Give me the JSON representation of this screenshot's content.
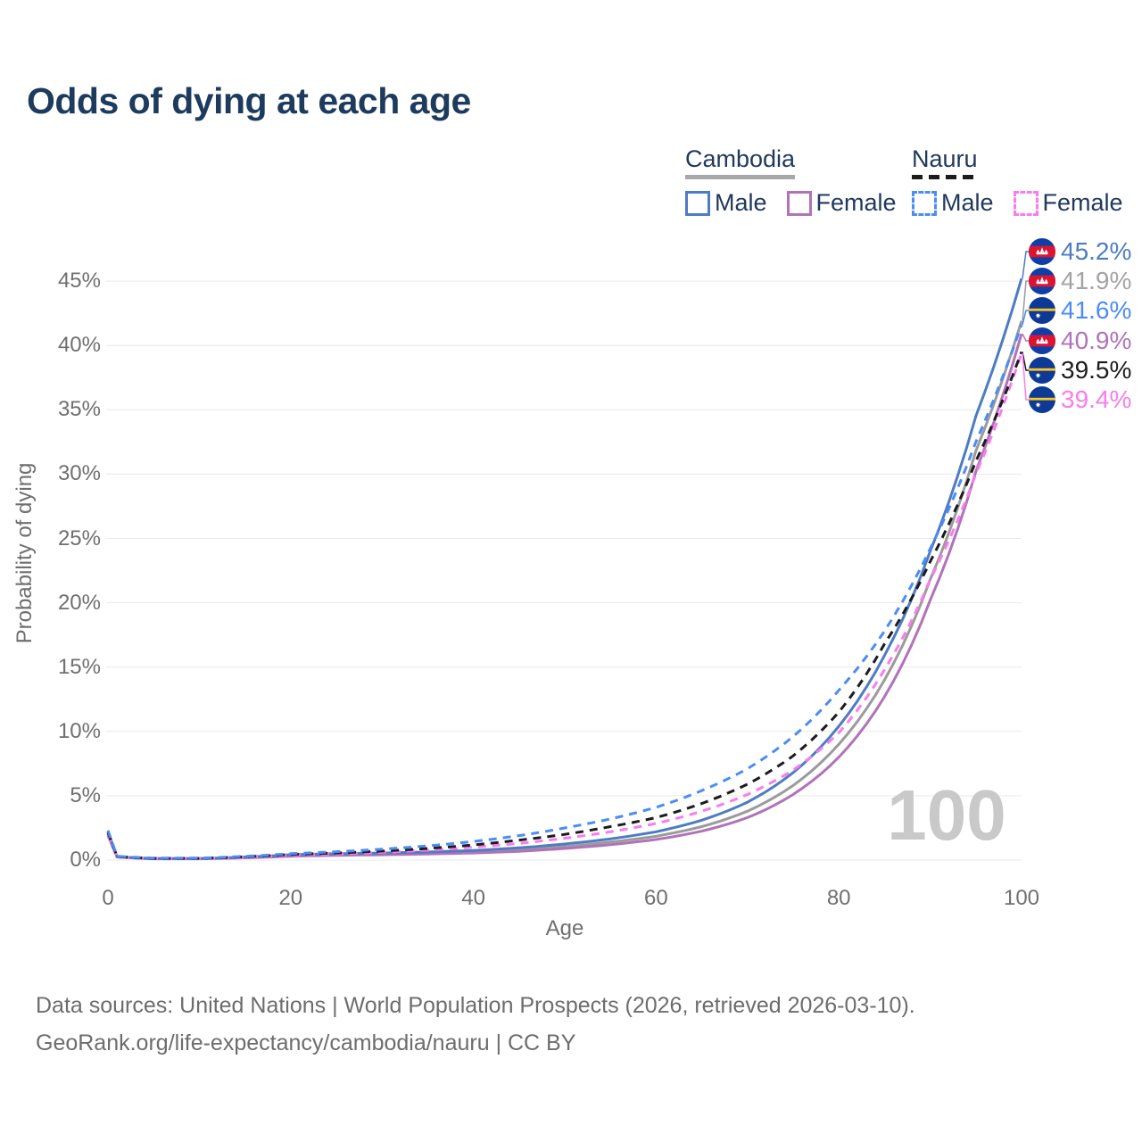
{
  "title": "Odds of dying at each age",
  "legend": {
    "groups": [
      {
        "country": "Cambodia",
        "line_style": "solid",
        "underline_color": "#a8a8a8",
        "items": [
          {
            "label": "Male",
            "color": "#4d7cc4",
            "dashed": false
          },
          {
            "label": "Female",
            "color": "#b172ba",
            "dashed": false
          }
        ]
      },
      {
        "country": "Nauru",
        "line_style": "dashed",
        "underline_color": "#1c1c1c",
        "items": [
          {
            "label": "Male",
            "color": "#4b8cf5",
            "dashed": true
          },
          {
            "label": "Female",
            "color": "#f97cee",
            "dashed": true
          }
        ]
      }
    ]
  },
  "watermark": "100",
  "footer": {
    "line1": "Data sources: United Nations | World Population Prospects (2026, retrieved 2026-03-10).",
    "line2": "GeoRank.org/life-expectancy/cambodia/nauru | CC BY"
  },
  "chart_data": {
    "type": "line",
    "title": "Odds of dying at each age",
    "xlabel": "Age",
    "ylabel": "Probability of dying",
    "xlim": [
      0,
      100
    ],
    "ylim_percent": [
      0,
      47
    ],
    "grid": true,
    "x_ticks": [
      0,
      20,
      40,
      60,
      80,
      100
    ],
    "y_ticks_percent": [
      0,
      5,
      10,
      15,
      20,
      25,
      30,
      35,
      40,
      45
    ],
    "y_tick_labels": [
      "0%",
      "5%",
      "10%",
      "15%",
      "20%",
      "25%",
      "30%",
      "35%",
      "40%",
      "45%"
    ],
    "ages": [
      0,
      1,
      5,
      10,
      15,
      20,
      25,
      30,
      35,
      40,
      45,
      50,
      55,
      60,
      65,
      70,
      75,
      80,
      85,
      90,
      95,
      100
    ],
    "series": [
      {
        "name": "Cambodia Male",
        "country": "Cambodia",
        "sex": "Male",
        "color": "#4d7cc4",
        "dashed": false,
        "flag": "cambodia",
        "end_label": "45.2%",
        "label_color": "#4d7cc4",
        "values_percent": [
          2.2,
          0.27,
          0.12,
          0.12,
          0.24,
          0.42,
          0.5,
          0.55,
          0.63,
          0.75,
          0.95,
          1.25,
          1.65,
          2.2,
          3.1,
          4.5,
          6.8,
          10.4,
          15.9,
          24.0,
          34.5,
          45.2
        ]
      },
      {
        "name": "Cambodia Both sexes",
        "country": "Cambodia",
        "sex": "Both",
        "color": "#9b9b9b",
        "dashed": false,
        "flag": "cambodia",
        "end_label": "41.9%",
        "label_color": "#a3a3a3",
        "values_percent": [
          2.05,
          0.25,
          0.11,
          0.11,
          0.2,
          0.36,
          0.43,
          0.47,
          0.54,
          0.64,
          0.8,
          1.05,
          1.4,
          1.85,
          2.6,
          3.8,
          5.8,
          9.0,
          14.0,
          21.8,
          31.8,
          41.9
        ]
      },
      {
        "name": "Nauru Male",
        "country": "Nauru",
        "sex": "Male",
        "color": "#4b8cf5",
        "dashed": true,
        "flag": "nauru",
        "end_label": "41.6%",
        "label_color": "#4b8cf5",
        "values_percent": [
          2.3,
          0.3,
          0.15,
          0.15,
          0.3,
          0.5,
          0.65,
          0.85,
          1.1,
          1.45,
          1.9,
          2.5,
          3.2,
          4.1,
          5.4,
          7.1,
          9.6,
          13.2,
          17.8,
          24.2,
          32.5,
          41.6
        ]
      },
      {
        "name": "Cambodia Female",
        "country": "Cambodia",
        "sex": "Female",
        "color": "#b172ba",
        "dashed": false,
        "flag": "cambodia",
        "end_label": "40.9%",
        "label_color": "#b172ba",
        "values_percent": [
          1.9,
          0.23,
          0.1,
          0.1,
          0.17,
          0.3,
          0.37,
          0.41,
          0.47,
          0.55,
          0.68,
          0.9,
          1.2,
          1.6,
          2.25,
          3.3,
          5.1,
          8.0,
          12.7,
          20.2,
          30.2,
          40.9
        ]
      },
      {
        "name": "Nauru Both sexes",
        "country": "Nauru",
        "sex": "Both",
        "color": "#1c1c1c",
        "dashed": true,
        "flag": "nauru",
        "end_label": "39.5%",
        "label_color": "#1d1d1d",
        "values_percent": [
          2.15,
          0.28,
          0.13,
          0.13,
          0.26,
          0.44,
          0.55,
          0.7,
          0.9,
          1.18,
          1.55,
          2.0,
          2.6,
          3.3,
          4.4,
          5.9,
          8.1,
          11.5,
          16.8,
          23.2,
          31.0,
          39.5
        ]
      },
      {
        "name": "Nauru Female",
        "country": "Nauru",
        "sex": "Female",
        "color": "#f97cee",
        "dashed": true,
        "flag": "nauru",
        "end_label": "39.4%",
        "label_color": "#f97cee",
        "values_percent": [
          2.0,
          0.26,
          0.12,
          0.12,
          0.22,
          0.37,
          0.47,
          0.6,
          0.77,
          1.0,
          1.3,
          1.7,
          2.2,
          2.85,
          3.8,
          5.1,
          7.0,
          9.9,
          14.8,
          21.8,
          30.0,
          39.4
        ]
      }
    ],
    "legend_position": "top-right"
  }
}
